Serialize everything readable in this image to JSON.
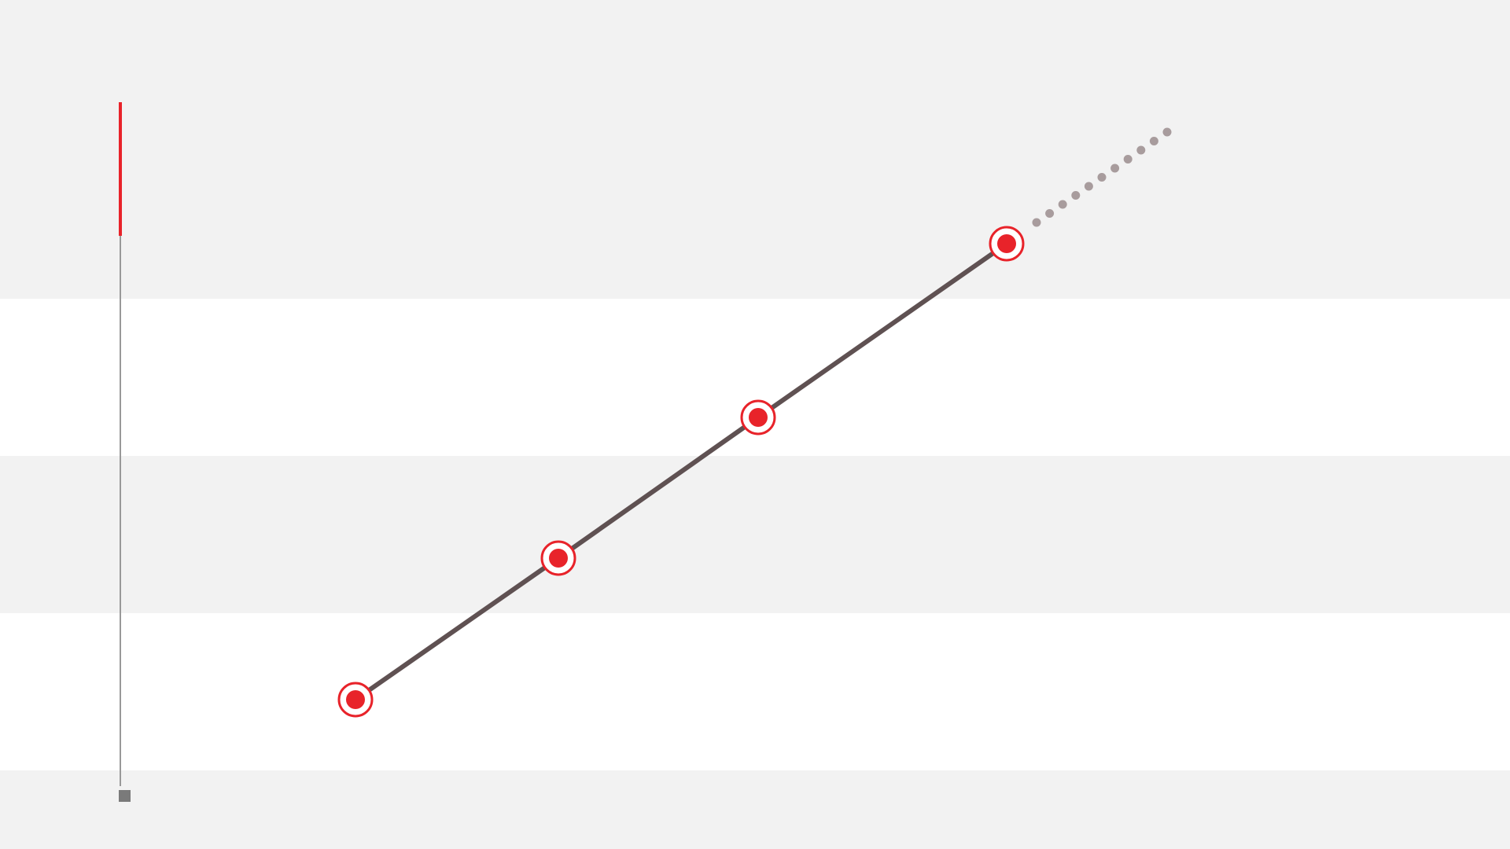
{
  "colors": {
    "band_gray": "#f2f2f2",
    "band_white": "#ffffff",
    "axis_line": "#999999",
    "axis_accent": "#e8232a",
    "axis_end_marker": "#7a7a7a",
    "trend_line": "#5f5152",
    "marker_fill": "#e8232a",
    "marker_ring": "#e8232a",
    "marker_inner_bg": "#ffffff",
    "projection_dots": "#a89c9d"
  },
  "bands": [
    {
      "color": "#f2f2f2"
    },
    {
      "color": "#ffffff"
    },
    {
      "color": "#f2f2f2"
    },
    {
      "color": "#ffffff"
    },
    {
      "color": "#f2f2f2"
    }
  ],
  "milestones": [
    {
      "step": 1
    },
    {
      "step": 2
    },
    {
      "step": 3
    },
    {
      "step": 4
    }
  ],
  "projection": {
    "dot_count": 11,
    "style": "dotted"
  }
}
